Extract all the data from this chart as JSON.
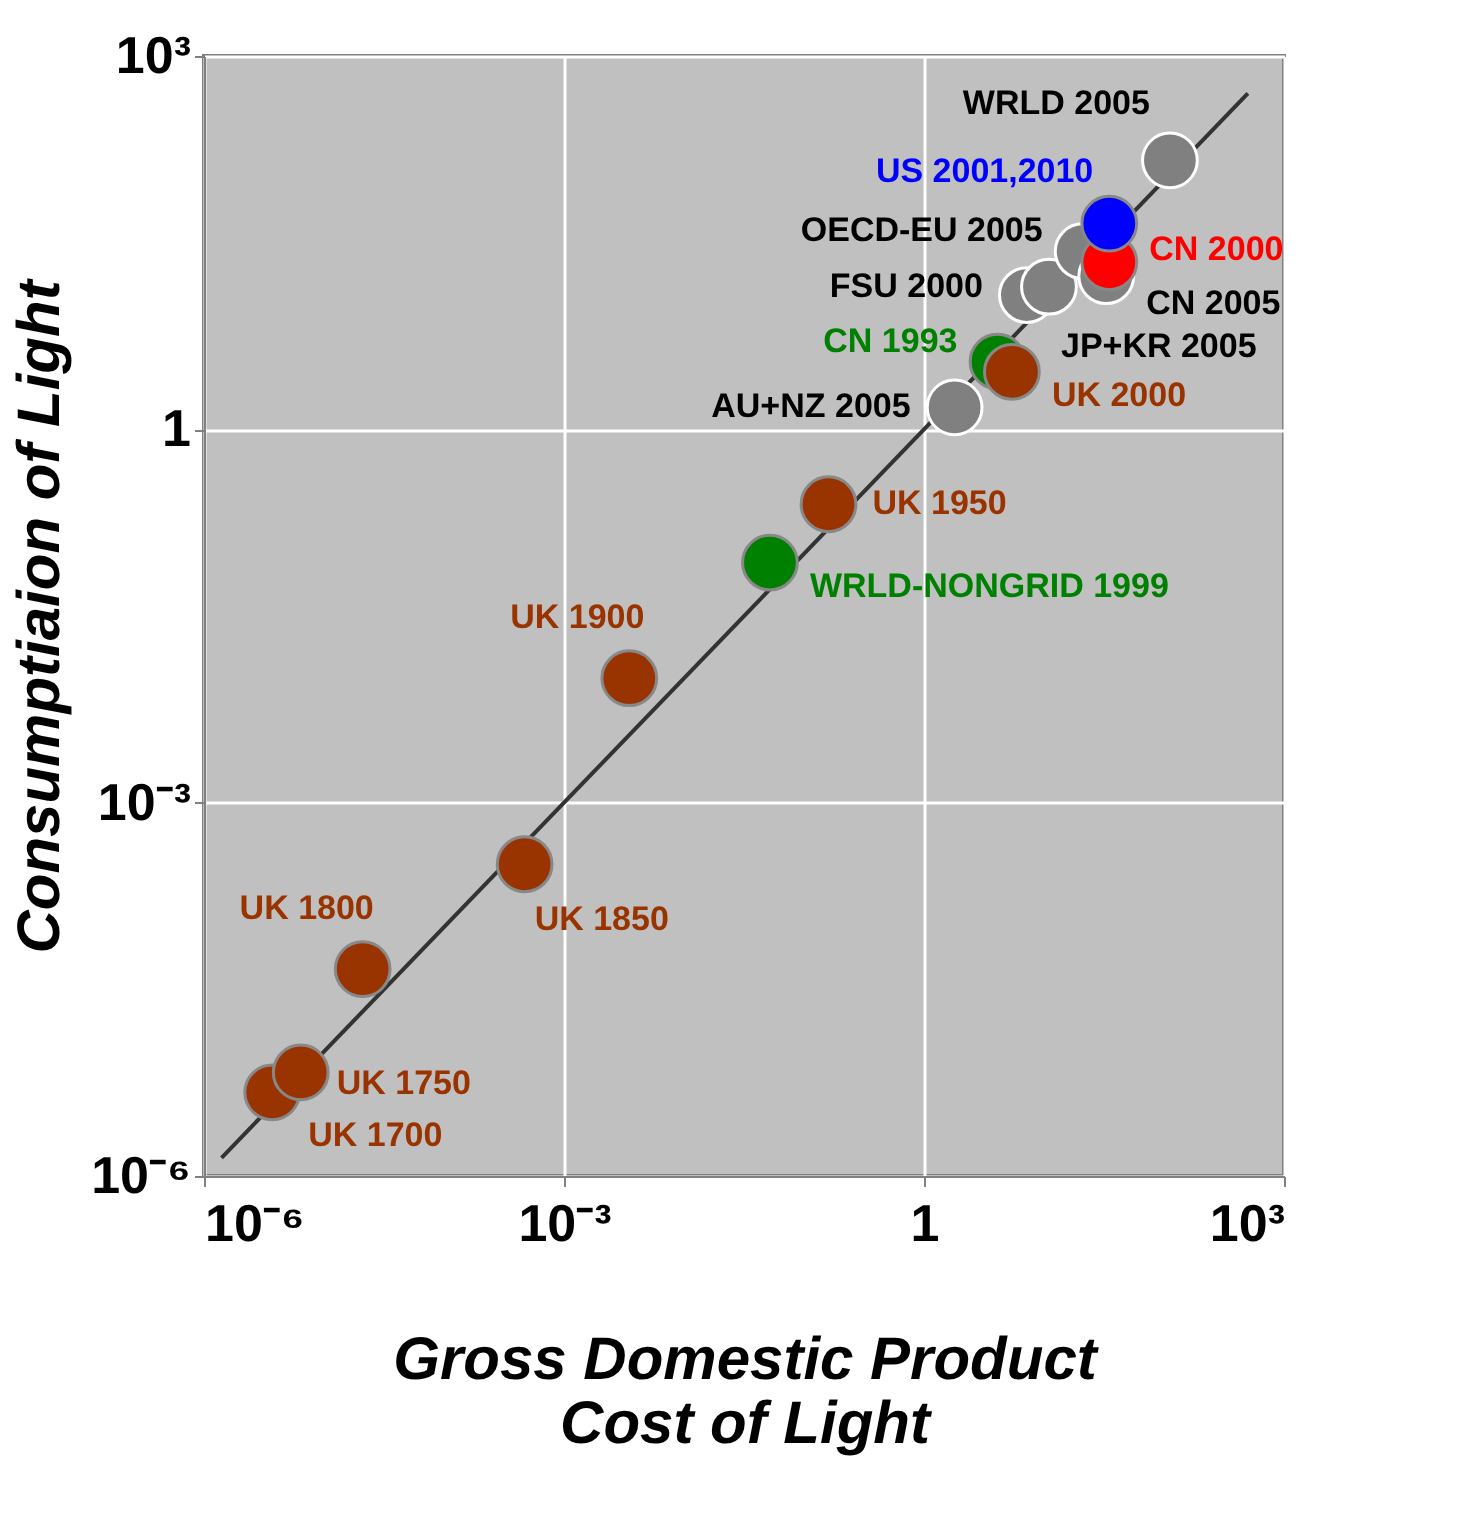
{
  "chart_data": {
    "type": "scatter",
    "xlabel": "Gross Domestic Product\nCost of Light",
    "ylabel": "Consumptiaion of Light",
    "log": "xy",
    "grid": true,
    "marker": "circle",
    "xlim": [
      1e-06,
      1000
    ],
    "ylim": [
      1e-06,
      1000
    ],
    "xticks": [
      {
        "value": 1e-06,
        "label": "10⁻⁶"
      },
      {
        "value": 0.001,
        "label": "10⁻³"
      },
      1,
      {
        "value": 1000,
        "label": "10³"
      }
    ],
    "yticks": [
      {
        "value": 1e-06,
        "label": "10⁻⁶"
      },
      {
        "value": 0.001,
        "label": "10⁻³"
      },
      1,
      {
        "value": 1000,
        "label": "10³"
      }
    ],
    "series": [
      {
        "type": "line",
        "marker": "none",
        "color": "#333333",
        "x": [
          1.4e-06,
          500
        ],
        "values": [
          1.4e-06,
          500
        ]
      },
      {
        "name": "UK 1700",
        "color": "#993300",
        "x": [
          3.7e-06
        ],
        "values": [
          4.7e-06
        ]
      },
      {
        "name": "UK 1750",
        "color": "#993300",
        "x": [
          6.4e-06
        ],
        "values": [
          6.8e-06
        ]
      },
      {
        "name": "UK 1800",
        "color": "#993300",
        "x": [
          2.1e-05
        ],
        "values": [
          4.6e-05
        ]
      },
      {
        "name": "UK 1850",
        "color": "#993300",
        "x": [
          0.00047
        ],
        "values": [
          0.00032
        ]
      },
      {
        "name": "UK 1900",
        "color": "#993300",
        "x": [
          0.0035
        ],
        "values": [
          0.01
        ]
      },
      {
        "name": "WRLD-NONGRID 1999",
        "color": "#008000",
        "x": [
          0.052
        ],
        "values": [
          0.085
        ]
      },
      {
        "name": "UK 1950",
        "color": "#993300",
        "x": [
          0.16
        ],
        "values": [
          0.25
        ]
      },
      {
        "name": "AU+NZ 2005",
        "color": "#808080",
        "x": [
          1.8
        ],
        "values": [
          1.5
        ]
      },
      {
        "name": "CN 1993",
        "color": "#008000",
        "x": [
          4.1
        ],
        "values": [
          3.5
        ]
      },
      {
        "name": "UK 2000",
        "color": "#993300",
        "x": [
          5.4
        ],
        "values": [
          2.9
        ]
      },
      {
        "name": "FSU 2000",
        "color": "#808080",
        "x": [
          7.2
        ],
        "values": [
          12
        ]
      },
      {
        "name": "JP+KR 2005",
        "color": "#808080",
        "x": [
          11
        ],
        "values": [
          14
        ]
      },
      {
        "name": "OECD-EU 2005",
        "color": "#808080",
        "x": [
          21
        ],
        "values": [
          27
        ]
      },
      {
        "name": "CN 2005",
        "color": "#808080",
        "x": [
          33
        ],
        "values": [
          17
        ]
      },
      {
        "name": "CN 2000",
        "color": "#ff0000",
        "x": [
          35
        ],
        "values": [
          22
        ]
      },
      {
        "name": "US 2001,2010",
        "color": "#0000ff",
        "x": [
          35
        ],
        "values": [
          45
        ]
      },
      {
        "name": "WRLD 2005",
        "color": "#808080",
        "x": [
          112
        ],
        "values": [
          145
        ]
      }
    ]
  }
}
